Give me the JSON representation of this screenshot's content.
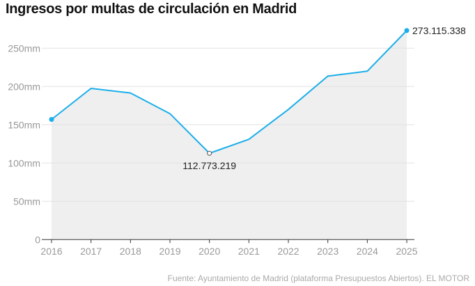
{
  "title": "Ingresos por multas de circulación en Madrid",
  "source": "Fuente: Ayuntamiento de Madrid (plataforma Presupuestos Abiertos). EL MOTOR",
  "chart_data": {
    "type": "area",
    "title": "Ingresos por multas de circulación en Madrid",
    "x": [
      "2016",
      "2017",
      "2018",
      "2019",
      "2020",
      "2021",
      "2022",
      "2023",
      "2024",
      "2025"
    ],
    "values": [
      157,
      197.5,
      191.5,
      164.5,
      112.773219,
      131,
      170,
      213.6,
      220,
      273.115338
    ],
    "ylim": [
      0,
      280
    ],
    "yticks": [
      0,
      50,
      100,
      150,
      200,
      250
    ],
    "ytick_labels": [
      "0",
      "50mm",
      "100mm",
      "150mm",
      "200mm",
      "250mm"
    ],
    "grid": true,
    "annotations": [
      {
        "x": "2020",
        "label": "112.773.219"
      },
      {
        "x": "2025",
        "label": "273.115.338"
      }
    ],
    "colors": {
      "line": "#1aaeea",
      "area": "#efefef",
      "grid": "#e2e2e2"
    }
  }
}
